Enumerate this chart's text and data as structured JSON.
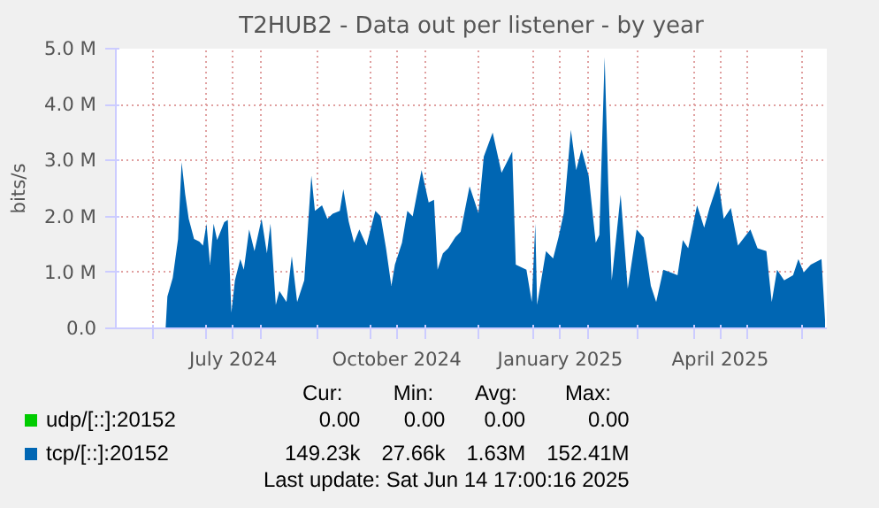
{
  "chart_data": {
    "type": "area",
    "title": "T2HUB2 - Data out per listener - by year",
    "ylabel": "bits/s",
    "xlim": [
      "2024-05-11",
      "2025-06-15"
    ],
    "xticks": [
      {
        "value": "2024-06-01",
        "label": null
      },
      {
        "value": "2024-07-01",
        "label": null
      },
      {
        "value": "2024-07-16",
        "label": "July 2024"
      },
      {
        "value": "2024-08-01",
        "label": null
      },
      {
        "value": "2024-09-01",
        "label": null
      },
      {
        "value": "2024-10-01",
        "label": null
      },
      {
        "value": "2024-10-16",
        "label": "October 2024"
      },
      {
        "value": "2024-11-01",
        "label": null
      },
      {
        "value": "2024-12-01",
        "label": null
      },
      {
        "value": "2025-01-01",
        "label": null
      },
      {
        "value": "2025-01-16",
        "label": "January 2025"
      },
      {
        "value": "2025-02-01",
        "label": null
      },
      {
        "value": "2025-03-01",
        "label": null
      },
      {
        "value": "2025-04-01",
        "label": null
      },
      {
        "value": "2025-04-16",
        "label": "April 2025"
      },
      {
        "value": "2025-05-01",
        "label": null
      },
      {
        "value": "2025-06-01",
        "label": null
      }
    ],
    "ylim": [
      0,
      5000000
    ],
    "yticks": [
      {
        "value": 0,
        "label": "0.0"
      },
      {
        "value": 1000000,
        "label": "1.0 M"
      },
      {
        "value": 2000000,
        "label": "2.0 M"
      },
      {
        "value": 3000000,
        "label": "3.0 M"
      },
      {
        "value": 4000000,
        "label": "4.0 M"
      },
      {
        "value": 5000000,
        "label": "5.0 M"
      }
    ],
    "grid": true,
    "legend": "bottom",
    "series": [
      {
        "name": "udp/[::]:20152",
        "color": "#00cc00"
      },
      {
        "name": "tcp/[::]:20152",
        "color": "#0066b3",
        "x": [
          "2024-06-08",
          "2024-06-09",
          "2024-06-12",
          "2024-06-15",
          "2024-06-17",
          "2024-06-19",
          "2024-06-21",
          "2024-06-24",
          "2024-06-27",
          "2024-06-29",
          "2024-07-01",
          "2024-07-03",
          "2024-07-05",
          "2024-07-07",
          "2024-07-11",
          "2024-07-13",
          "2024-07-15",
          "2024-07-17",
          "2024-07-20",
          "2024-07-22",
          "2024-07-25",
          "2024-07-28",
          "2024-08-01",
          "2024-08-04",
          "2024-08-06",
          "2024-08-09",
          "2024-08-11",
          "2024-08-15",
          "2024-08-18",
          "2024-08-21",
          "2024-08-25",
          "2024-08-29",
          "2024-08-31",
          "2024-09-04",
          "2024-09-07",
          "2024-09-10",
          "2024-09-14",
          "2024-09-16",
          "2024-09-19",
          "2024-09-22",
          "2024-09-25",
          "2024-09-29",
          "2024-10-04",
          "2024-10-07",
          "2024-10-10",
          "2024-10-13",
          "2024-10-15",
          "2024-10-19",
          "2024-10-22",
          "2024-10-25",
          "2024-10-30",
          "2024-11-03",
          "2024-11-06",
          "2024-11-08",
          "2024-11-11",
          "2024-11-14",
          "2024-11-18",
          "2024-11-21",
          "2024-11-26",
          "2024-12-01",
          "2024-12-04",
          "2024-12-09",
          "2024-12-14",
          "2024-12-20",
          "2024-12-22",
          "2024-12-28",
          "2024-12-31",
          "2025-01-02",
          "2025-01-03",
          "2025-01-08",
          "2025-01-12",
          "2025-01-15",
          "2025-01-18",
          "2025-01-22",
          "2025-01-25",
          "2025-01-28",
          "2025-02-01",
          "2025-02-05",
          "2025-02-07",
          "2025-02-10",
          "2025-02-12",
          "2025-02-14",
          "2025-02-19",
          "2025-02-23",
          "2025-02-28",
          "2025-03-04",
          "2025-03-08",
          "2025-03-11",
          "2025-03-15",
          "2025-03-19",
          "2025-03-23",
          "2025-03-26",
          "2025-03-29",
          "2025-04-03",
          "2025-04-07",
          "2025-04-10",
          "2025-04-15",
          "2025-04-18",
          "2025-04-22",
          "2025-04-26",
          "2025-05-03",
          "2025-05-07",
          "2025-05-12",
          "2025-05-15",
          "2025-05-18",
          "2025-05-22",
          "2025-05-27",
          "2025-05-30",
          "2025-06-02",
          "2025-06-06",
          "2025-06-12",
          "2025-06-14"
        ],
        "values": [
          0,
          570000,
          900000,
          1600000,
          2970000,
          2400000,
          1960000,
          1600000,
          1550000,
          1480000,
          1870000,
          1140000,
          1870000,
          1580000,
          1900000,
          1940000,
          280000,
          860000,
          1240000,
          1050000,
          1770000,
          1380000,
          1960000,
          1340000,
          1870000,
          420000,
          670000,
          470000,
          1290000,
          470000,
          860000,
          2730000,
          2100000,
          2200000,
          1960000,
          2050000,
          2100000,
          2490000,
          1910000,
          1530000,
          1770000,
          1480000,
          2100000,
          2000000,
          1430000,
          760000,
          1140000,
          1530000,
          2100000,
          2000000,
          2830000,
          2250000,
          2300000,
          1050000,
          1340000,
          1430000,
          1630000,
          1730000,
          2540000,
          2060000,
          3070000,
          3500000,
          2780000,
          3160000,
          1140000,
          1050000,
          470000,
          1870000,
          420000,
          1380000,
          1250000,
          1620000,
          2060000,
          3550000,
          2830000,
          3200000,
          2730000,
          1530000,
          1670000,
          4850000,
          2590000,
          860000,
          2390000,
          710000,
          1770000,
          1620000,
          760000,
          470000,
          1050000,
          1000000,
          950000,
          1580000,
          1430000,
          2200000,
          1800000,
          2150000,
          2630000,
          1960000,
          2150000,
          1480000,
          1770000,
          1430000,
          1380000,
          470000,
          1050000,
          860000,
          950000,
          1240000,
          1000000,
          1140000,
          1240000,
          150000
        ]
      }
    ],
    "annotations": [
      "Cur:",
      "Min:",
      "Avg:",
      "Max:",
      "0.00",
      "0.00",
      "0.00",
      "0.00",
      "149.23k",
      "27.66k",
      "1.63M",
      "152.41M",
      "Last update: Sat Jun 14 17:00:16 2025"
    ]
  }
}
